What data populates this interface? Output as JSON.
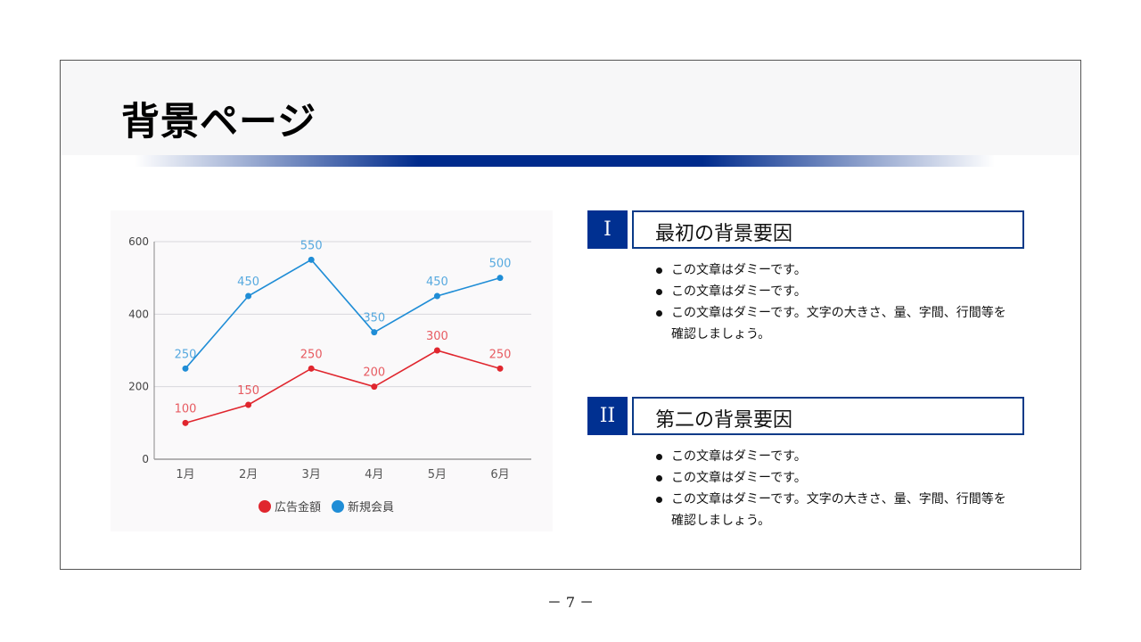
{
  "slide": {
    "title": "背景ページ",
    "page_number": "－ 7 －",
    "accent_color": "#003091"
  },
  "sections": [
    {
      "number": "I",
      "title": "最初の背景要因",
      "bullets": [
        "この文章はダミーです。",
        "この文章はダミーです。",
        "この文章はダミーです。文字の大きさ、量、字間、行間等を確認しましょう。"
      ]
    },
    {
      "number": "II",
      "title": "第二の背景要因",
      "bullets": [
        "この文章はダミーです。",
        "この文章はダミーです。",
        "この文章はダミーです。文字の大きさ、量、字間、行間等を確認しましょう。"
      ]
    }
  ],
  "chart_data": {
    "type": "line",
    "title": "",
    "xlabel": "",
    "ylabel": "",
    "categories": [
      "1月",
      "2月",
      "3月",
      "4月",
      "5月",
      "6月"
    ],
    "series": [
      {
        "name": "広告金額",
        "color": "#e0262e",
        "values": [
          100,
          150,
          250,
          200,
          300,
          250
        ]
      },
      {
        "name": "新規会員",
        "color": "#1f8dd6",
        "values": [
          250,
          450,
          550,
          350,
          450,
          500
        ]
      }
    ],
    "yticks": [
      0,
      200,
      400,
      600
    ],
    "ylim": [
      0,
      600
    ],
    "grid": true,
    "data_labels": true,
    "legend_position": "bottom"
  }
}
